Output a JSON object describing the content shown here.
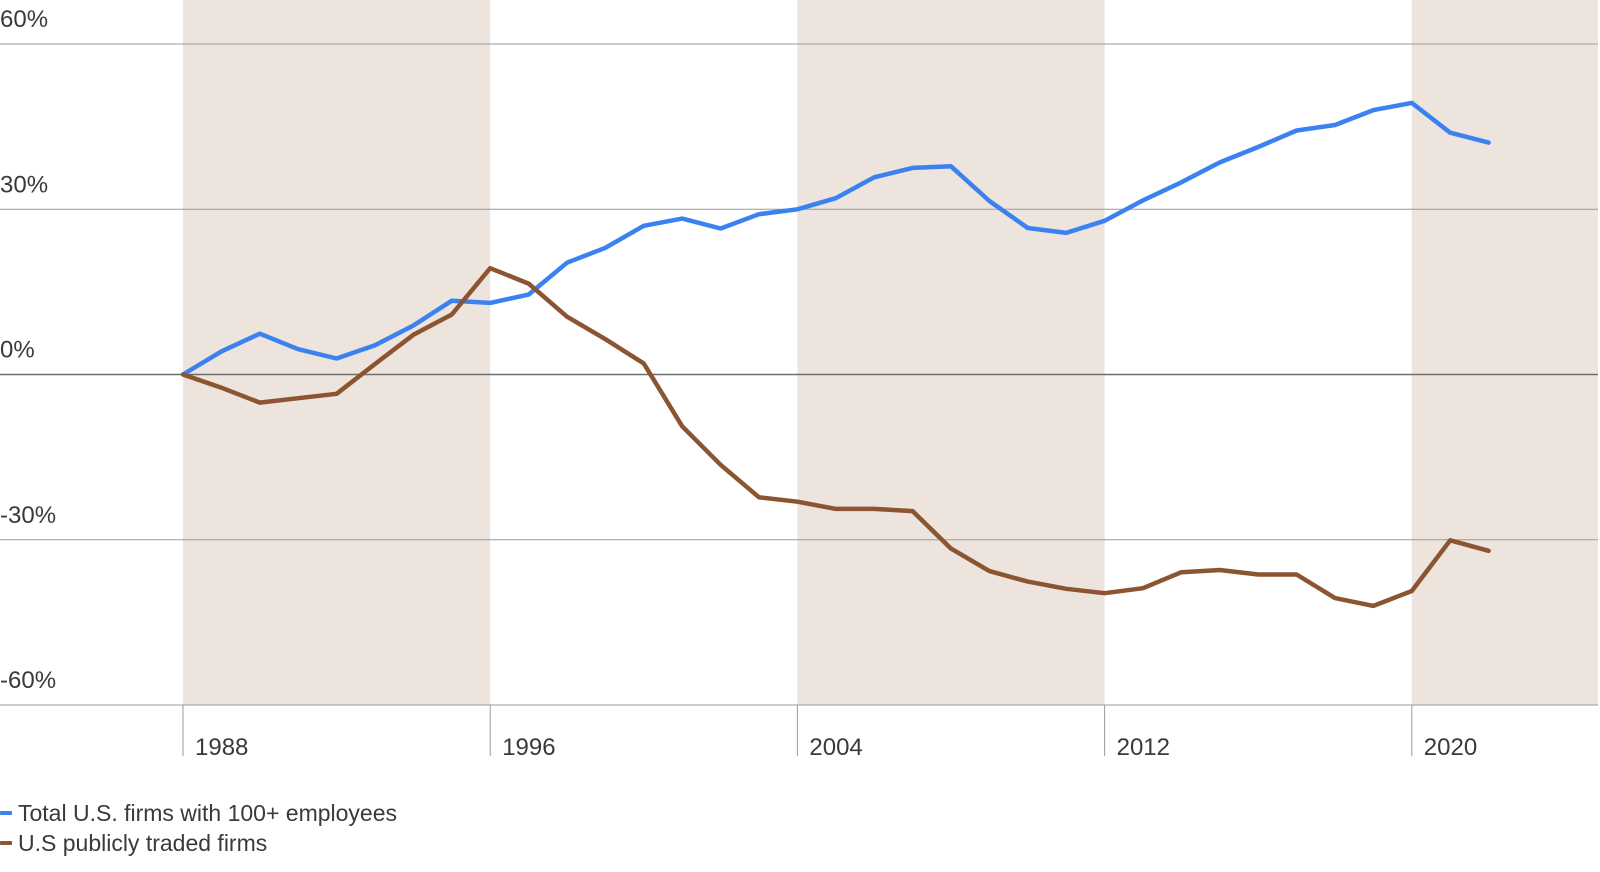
{
  "chart_data": {
    "type": "line",
    "ylim": [
      -60,
      60
    ],
    "y_ticks": [
      {
        "value": 60,
        "label": "60%"
      },
      {
        "value": 30,
        "label": "30%"
      },
      {
        "value": 0,
        "label": "0%"
      },
      {
        "value": -30,
        "label": "-30%"
      },
      {
        "value": -60,
        "label": "-60%"
      }
    ],
    "x_ticks": [
      {
        "value": 1988,
        "label": "1988"
      },
      {
        "value": 1996,
        "label": "1996"
      },
      {
        "value": 2004,
        "label": "2004"
      },
      {
        "value": 2012,
        "label": "2012"
      },
      {
        "value": 2020,
        "label": "2020"
      }
    ],
    "shaded_bands": [
      [
        1988,
        1996
      ],
      [
        2004,
        2012
      ],
      [
        2020,
        2025
      ]
    ],
    "grid": true,
    "legend_position": "bottom-left",
    "x": [
      1988,
      1989,
      1990,
      1991,
      1992,
      1993,
      1994,
      1995,
      1996,
      1997,
      1998,
      1999,
      2000,
      2001,
      2002,
      2003,
      2004,
      2005,
      2006,
      2007,
      2008,
      2009,
      2010,
      2011,
      2012,
      2013,
      2014,
      2015,
      2016,
      2017,
      2018,
      2019,
      2020,
      2021,
      2022
    ],
    "series": [
      {
        "name": "Total U.S. firms with 100+ employees",
        "color": "#3b82f0",
        "values": [
          0,
          4.2,
          7.4,
          4.6,
          2.9,
          5.3,
          8.9,
          13.4,
          13,
          14.5,
          20.3,
          23,
          27,
          28.3,
          26.5,
          29.1,
          30,
          32,
          35.8,
          37.5,
          37.8,
          31.5,
          26.6,
          25.7,
          27.9,
          31.6,
          34.9,
          38.5,
          41.3,
          44.3,
          45.3,
          48,
          49.3,
          43.9,
          42.1
        ]
      },
      {
        "name": "U.S publicly traded firms",
        "color": "#8a5530",
        "values": [
          0,
          -2.4,
          -5.1,
          -4.3,
          -3.5,
          1.9,
          7.2,
          10.9,
          19.3,
          16.5,
          10.5,
          6.4,
          2,
          -9.4,
          -16.4,
          -22.3,
          -23.1,
          -24.4,
          -24.4,
          -24.8,
          -31.6,
          -35.7,
          -37.6,
          -38.9,
          -39.7,
          -38.8,
          -35.9,
          -35.5,
          -36.3,
          -36.3,
          -40.6,
          -42,
          -39.3,
          -30.1,
          -32
        ]
      }
    ]
  }
}
